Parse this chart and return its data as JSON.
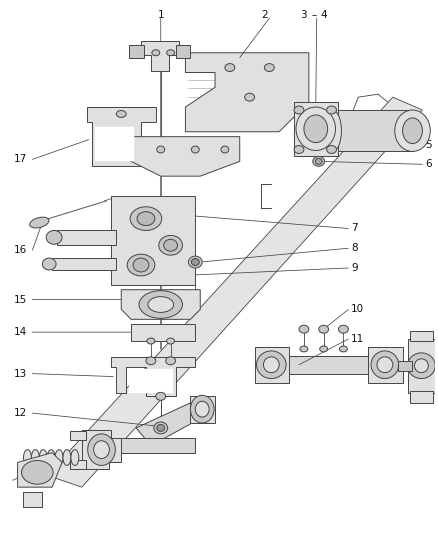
{
  "background_color": "#ffffff",
  "line_color": "#444444",
  "label_color": "#111111",
  "fig_width": 4.38,
  "fig_height": 5.33,
  "dpi": 100,
  "shaft_color": "#e8e8e8",
  "part_fill": "#e0e0e0",
  "part_dark": "#c8c8c8",
  "part_light": "#f0f0f0"
}
